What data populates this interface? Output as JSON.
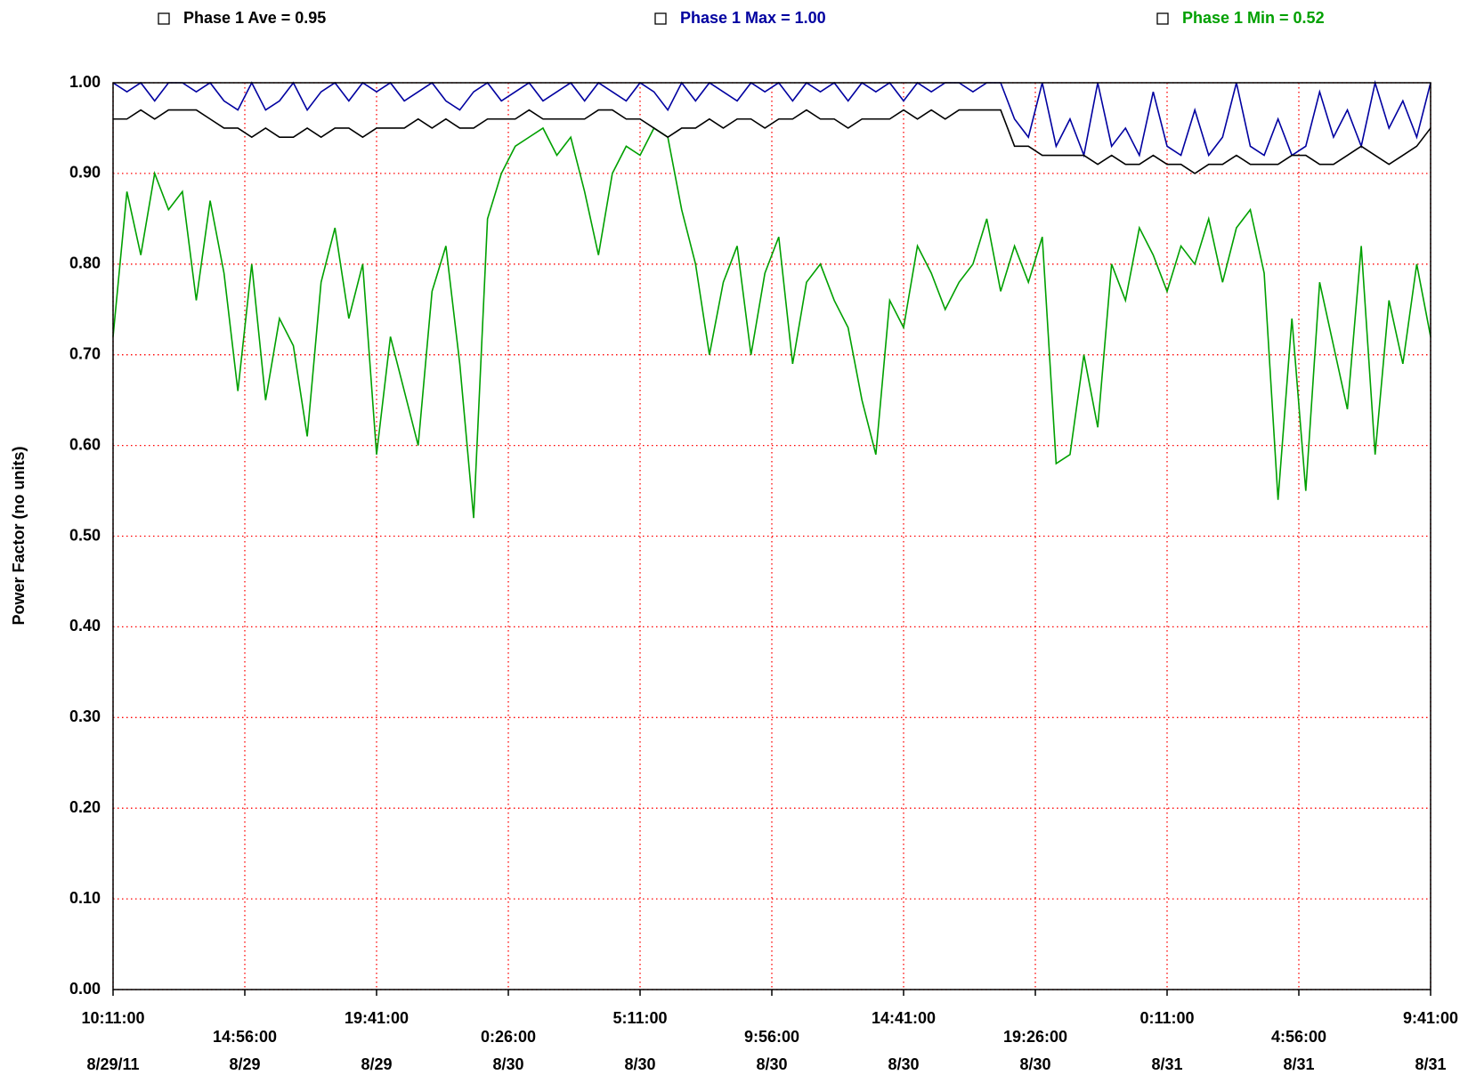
{
  "chart_data": {
    "type": "line",
    "y_label": "Power Factor  (no units)",
    "x": [
      "2011-08-29T10:11",
      "2011-08-29T10:41",
      "2011-08-29T11:11",
      "2011-08-29T11:41",
      "2011-08-29T12:11",
      "2011-08-29T12:41",
      "2011-08-29T13:11",
      "2011-08-29T13:41",
      "2011-08-29T14:11",
      "2011-08-29T14:41",
      "2011-08-29T15:11",
      "2011-08-29T15:41",
      "2011-08-29T16:11",
      "2011-08-29T16:41",
      "2011-08-29T17:11",
      "2011-08-29T17:41",
      "2011-08-29T18:11",
      "2011-08-29T18:41",
      "2011-08-29T19:11",
      "2011-08-29T19:41",
      "2011-08-29T20:11",
      "2011-08-29T20:41",
      "2011-08-29T21:11",
      "2011-08-29T21:41",
      "2011-08-29T22:11",
      "2011-08-29T22:41",
      "2011-08-29T23:11",
      "2011-08-29T23:41",
      "2011-08-30T00:11",
      "2011-08-30T00:41",
      "2011-08-30T01:11",
      "2011-08-30T01:41",
      "2011-08-30T02:11",
      "2011-08-30T02:41",
      "2011-08-30T03:11",
      "2011-08-30T03:41",
      "2011-08-30T04:11",
      "2011-08-30T04:41",
      "2011-08-30T05:11",
      "2011-08-30T05:41",
      "2011-08-30T06:11",
      "2011-08-30T06:41",
      "2011-08-30T07:11",
      "2011-08-30T07:41",
      "2011-08-30T08:11",
      "2011-08-30T08:41",
      "2011-08-30T09:11",
      "2011-08-30T09:41",
      "2011-08-30T10:11",
      "2011-08-30T10:41",
      "2011-08-30T11:11",
      "2011-08-30T11:41",
      "2011-08-30T12:11",
      "2011-08-30T12:41",
      "2011-08-30T13:11",
      "2011-08-30T13:41",
      "2011-08-30T14:11",
      "2011-08-30T14:41",
      "2011-08-30T15:11",
      "2011-08-30T15:41",
      "2011-08-30T16:11",
      "2011-08-30T16:41",
      "2011-08-30T17:11",
      "2011-08-30T17:41",
      "2011-08-30T18:11",
      "2011-08-30T18:41",
      "2011-08-30T19:11",
      "2011-08-30T19:41",
      "2011-08-30T20:11",
      "2011-08-30T20:41",
      "2011-08-30T21:11",
      "2011-08-30T21:41",
      "2011-08-30T22:11",
      "2011-08-30T22:41",
      "2011-08-30T23:11",
      "2011-08-30T23:41",
      "2011-08-31T00:11",
      "2011-08-31T00:41",
      "2011-08-31T01:11",
      "2011-08-31T01:41",
      "2011-08-31T02:11",
      "2011-08-31T02:41",
      "2011-08-31T03:11",
      "2011-08-31T03:41",
      "2011-08-31T04:11",
      "2011-08-31T04:41",
      "2011-08-31T05:11",
      "2011-08-31T05:41",
      "2011-08-31T06:11",
      "2011-08-31T06:41",
      "2011-08-31T07:11",
      "2011-08-31T07:41",
      "2011-08-31T08:11",
      "2011-08-31T08:41",
      "2011-08-31T09:11",
      "2011-08-31T09:41"
    ],
    "series": [
      {
        "name": "Phase 1 Max = 1.00",
        "color": "#0000a0",
        "values": [
          1.0,
          0.99,
          1.0,
          0.98,
          1.0,
          1.0,
          0.99,
          1.0,
          0.98,
          0.97,
          1.0,
          0.97,
          0.98,
          1.0,
          0.97,
          0.99,
          1.0,
          0.98,
          1.0,
          0.99,
          1.0,
          0.98,
          0.99,
          1.0,
          0.98,
          0.97,
          0.99,
          1.0,
          0.98,
          0.99,
          1.0,
          0.98,
          0.99,
          1.0,
          0.98,
          1.0,
          0.99,
          0.98,
          1.0,
          0.99,
          0.97,
          1.0,
          0.98,
          1.0,
          0.99,
          0.98,
          1.0,
          0.99,
          1.0,
          0.98,
          1.0,
          0.99,
          1.0,
          0.98,
          1.0,
          0.99,
          1.0,
          0.98,
          1.0,
          0.99,
          1.0,
          1.0,
          0.99,
          1.0,
          1.0,
          0.96,
          0.94,
          1.0,
          0.93,
          0.96,
          0.92,
          1.0,
          0.93,
          0.95,
          0.92,
          0.99,
          0.93,
          0.92,
          0.97,
          0.92,
          0.94,
          1.0,
          0.93,
          0.92,
          0.96,
          0.92,
          0.93,
          0.99,
          0.94,
          0.97,
          0.93,
          1.0,
          0.95,
          0.98,
          0.94,
          1.0
        ]
      },
      {
        "name": "Phase 1 Min = 0.52",
        "color": "#00a000",
        "values": [
          0.72,
          0.88,
          0.81,
          0.9,
          0.86,
          0.88,
          0.76,
          0.87,
          0.79,
          0.66,
          0.8,
          0.65,
          0.74,
          0.71,
          0.61,
          0.78,
          0.84,
          0.74,
          0.8,
          0.59,
          0.72,
          0.66,
          0.6,
          0.77,
          0.82,
          0.69,
          0.52,
          0.85,
          0.9,
          0.93,
          0.94,
          0.95,
          0.92,
          0.94,
          0.88,
          0.81,
          0.9,
          0.93,
          0.92,
          0.95,
          0.94,
          0.86,
          0.8,
          0.7,
          0.78,
          0.82,
          0.7,
          0.79,
          0.83,
          0.69,
          0.78,
          0.8,
          0.76,
          0.73,
          0.65,
          0.59,
          0.76,
          0.73,
          0.82,
          0.79,
          0.75,
          0.78,
          0.8,
          0.85,
          0.77,
          0.82,
          0.78,
          0.83,
          0.58,
          0.59,
          0.7,
          0.62,
          0.8,
          0.76,
          0.84,
          0.81,
          0.77,
          0.82,
          0.8,
          0.85,
          0.78,
          0.84,
          0.86,
          0.79,
          0.54,
          0.74,
          0.55,
          0.78,
          0.71,
          0.64,
          0.82,
          0.59,
          0.76,
          0.69,
          0.8,
          0.72
        ]
      },
      {
        "name": "Phase 1 Ave = 0.95",
        "color": "#000000",
        "values": [
          0.96,
          0.96,
          0.97,
          0.96,
          0.97,
          0.97,
          0.97,
          0.96,
          0.95,
          0.95,
          0.94,
          0.95,
          0.94,
          0.94,
          0.95,
          0.94,
          0.95,
          0.95,
          0.94,
          0.95,
          0.95,
          0.95,
          0.96,
          0.95,
          0.96,
          0.95,
          0.95,
          0.96,
          0.96,
          0.96,
          0.97,
          0.96,
          0.96,
          0.96,
          0.96,
          0.97,
          0.97,
          0.96,
          0.96,
          0.95,
          0.94,
          0.95,
          0.95,
          0.96,
          0.95,
          0.96,
          0.96,
          0.95,
          0.96,
          0.96,
          0.97,
          0.96,
          0.96,
          0.95,
          0.96,
          0.96,
          0.96,
          0.97,
          0.96,
          0.97,
          0.96,
          0.97,
          0.97,
          0.97,
          0.97,
          0.93,
          0.93,
          0.92,
          0.92,
          0.92,
          0.92,
          0.91,
          0.92,
          0.91,
          0.91,
          0.92,
          0.91,
          0.91,
          0.9,
          0.91,
          0.91,
          0.92,
          0.91,
          0.91,
          0.91,
          0.92,
          0.92,
          0.91,
          0.91,
          0.92,
          0.93,
          0.92,
          0.91,
          0.92,
          0.93,
          0.95
        ]
      }
    ],
    "legend_order": [
      2,
      0,
      1
    ],
    "xlim": [
      "2011-08-29T10:11",
      "2011-08-31T09:41"
    ],
    "xticks": [
      {
        "value": "2011-08-29T10:11",
        "label": [
          "10:11:00",
          "8/29/11"
        ]
      },
      {
        "value": "2011-08-29T14:56",
        "label": [
          "14:56:00",
          "8/29"
        ]
      },
      {
        "value": "2011-08-29T19:41",
        "label": [
          "19:41:00",
          "8/29"
        ]
      },
      {
        "value": "2011-08-30T00:26",
        "label": [
          "0:26:00",
          "8/30"
        ]
      },
      {
        "value": "2011-08-30T05:11",
        "label": [
          "5:11:00",
          "8/30"
        ]
      },
      {
        "value": "2011-08-30T09:56",
        "label": [
          "9:56:00",
          "8/30"
        ]
      },
      {
        "value": "2011-08-30T14:41",
        "label": [
          "14:41:00",
          "8/30"
        ]
      },
      {
        "value": "2011-08-30T19:26",
        "label": [
          "19:26:00",
          "8/30"
        ]
      },
      {
        "value": "2011-08-31T00:11",
        "label": [
          "0:11:00",
          "8/31"
        ]
      },
      {
        "value": "2011-08-31T04:56",
        "label": [
          "4:56:00",
          "8/31"
        ]
      },
      {
        "value": "2011-08-31T09:41",
        "label": [
          "9:41:00",
          "8/31"
        ]
      }
    ],
    "ylim": [
      0,
      1
    ],
    "yticks": [
      {
        "value": 0,
        "label": "0.00"
      },
      {
        "value": 0.1,
        "label": "0.10"
      },
      {
        "value": 0.2,
        "label": "0.20"
      },
      {
        "value": 0.3,
        "label": "0.30"
      },
      {
        "value": 0.4,
        "label": "0.40"
      },
      {
        "value": 0.5,
        "label": "0.50"
      },
      {
        "value": 0.6,
        "label": "0.60"
      },
      {
        "value": 0.7,
        "label": "0.70"
      },
      {
        "value": 0.8,
        "label": "0.80"
      },
      {
        "value": 0.9,
        "label": "0.90"
      },
      {
        "value": 1,
        "label": "1.00"
      }
    ],
    "grid": true,
    "grid_color": "#ff0000"
  }
}
